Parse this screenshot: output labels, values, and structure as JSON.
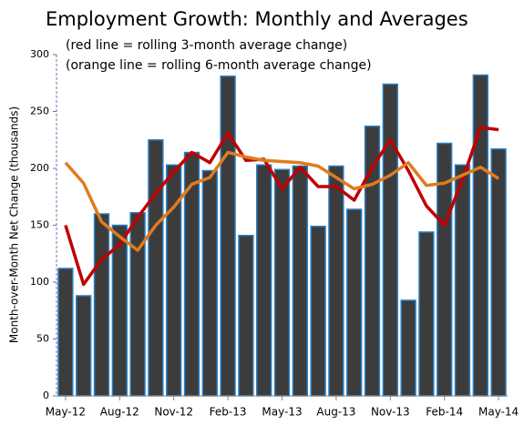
{
  "chart_data": {
    "type": "bar",
    "title": "Employment Growth: Monthly and Averages",
    "annotations": [
      "(red line = rolling  3-month average change)",
      "(orange line = rolling 6-month average change)"
    ],
    "y_label": "Month-over-Month Net Change (thousands)",
    "categories": [
      "May-12",
      null,
      null,
      "Aug-12",
      null,
      null,
      "Nov-12",
      null,
      null,
      "Feb-13",
      null,
      null,
      "May-13",
      null,
      null,
      "Aug-13",
      null,
      null,
      "Nov-13",
      null,
      null,
      "Feb-14",
      null,
      null,
      "May-14"
    ],
    "values": [
      112,
      88,
      160,
      150,
      161,
      225,
      203,
      214,
      198,
      281,
      141,
      203,
      199,
      202,
      149,
      202,
      164,
      237,
      274,
      84,
      144,
      222,
      203,
      282,
      217
    ],
    "color": "#3c3c3c",
    "edge_color": "#2a7fc0",
    "lines": [
      {
        "color": "#c00000",
        "values": [
          150,
          98,
          120,
          133,
          157,
          178,
          197,
          214,
          205,
          231,
          207,
          208,
          182,
          201,
          184,
          184,
          172,
          201,
          225,
          198,
          167,
          150,
          190,
          236,
          234
        ]
      },
      {
        "color": "#e07b20",
        "values": [
          205,
          187,
          153,
          140,
          128,
          150,
          166,
          186,
          192,
          214,
          210,
          207,
          206,
          205,
          202,
          192,
          182,
          186,
          194,
          205,
          185,
          187,
          194,
          201,
          191
        ]
      }
    ],
    "ylim": [
      0,
      300
    ],
    "yticks": [
      0,
      50,
      100,
      150,
      200,
      250,
      300
    ]
  }
}
